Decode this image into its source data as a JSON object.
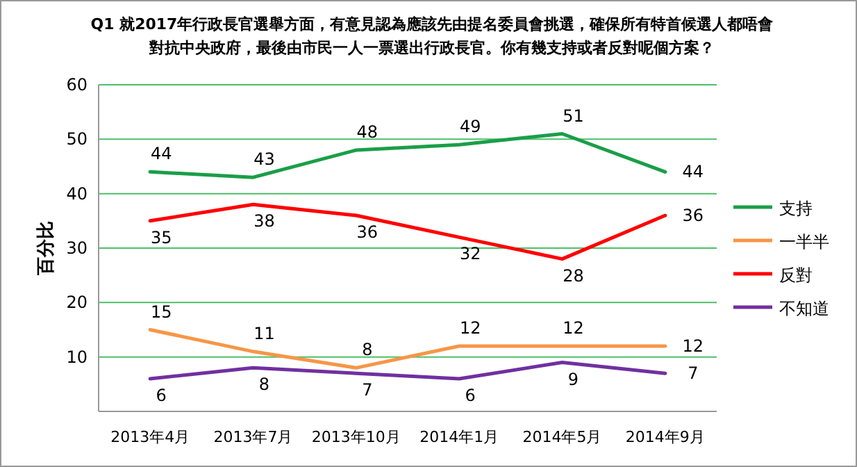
{
  "chart_data": {
    "type": "line",
    "title": "Q1 就2017年行政長官選舉方面，有意見認為應該先由提名委員會挑選，確保所有特首候選人都唔會對抗中央政府，最後由市民一人一票選出行政長官。你有幾支持或者反對呢個方案？",
    "ylabel": "百分比",
    "categories": [
      "2013年4月",
      "2013年7月",
      "2013年10月",
      "2014年1月",
      "2014年5月",
      "2014年9月"
    ],
    "series": [
      {
        "name": "支持",
        "color": "#1a9e48",
        "values": [
          44,
          43,
          48,
          49,
          51,
          44
        ]
      },
      {
        "name": "一半半",
        "color": "#f79646",
        "values": [
          15,
          11,
          8,
          12,
          12,
          12
        ]
      },
      {
        "name": "反對",
        "color": "#ff0000",
        "values": [
          35,
          38,
          36,
          32,
          28,
          36
        ]
      },
      {
        "name": "不知道",
        "color": "#7030a0",
        "values": [
          6,
          8,
          7,
          6,
          9,
          7
        ]
      }
    ],
    "ylim": [
      0,
      60
    ],
    "yticks": [
      10,
      20,
      30,
      40,
      50,
      60
    ],
    "grid": "y",
    "legend": "right",
    "data_labels": true,
    "marker": "none",
    "line_style": "solid"
  }
}
